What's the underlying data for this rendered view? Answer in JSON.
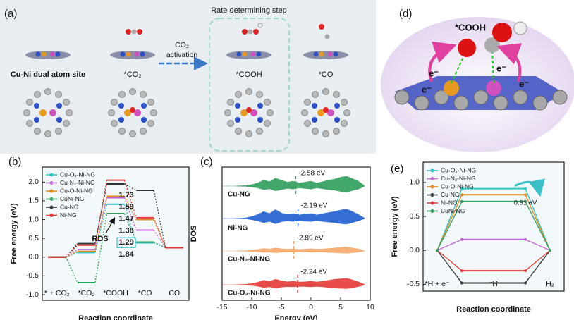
{
  "panel_a": {
    "label": "(a)",
    "rds_title": "Rate determining step",
    "states": [
      "Cu-Ni dual atom site",
      "*CO₂",
      "*COOH",
      "*CO"
    ],
    "arrow_label": [
      "CO₂",
      "activation"
    ]
  },
  "panel_d": {
    "label": "(d)",
    "species": "*COOH",
    "electron": "e⁻"
  },
  "chart_data": [
    {
      "type": "step",
      "label": "(b)",
      "xlabel": "Reaction coordinate",
      "ylabel": "Free energy (eV)",
      "categories": [
        "* + CO₂",
        "*CO₂",
        "*COOH",
        "*CO",
        "CO"
      ],
      "ylim": [
        -1.15,
        2.4
      ],
      "yticks": [
        {
          "value": -1,
          "label": "-1.0"
        },
        -0.5,
        {
          "value": 0,
          "label": "0.0"
        },
        0.5,
        {
          "value": 1,
          "label": "1.0"
        },
        1.5,
        {
          "value": 2,
          "label": "2.0"
        }
      ],
      "connector": "dashed",
      "series": [
        {
          "name": "Cu-O₂-Ni-NG",
          "color": "#2ec4c4",
          "values": [
            0,
            0.12,
            1.41,
            0.38,
            0.25
          ]
        },
        {
          "name": "Cu-N₂-Ni-NG",
          "color": "#c266d6",
          "values": [
            0,
            0.2,
            1.58,
            0.72,
            0.25
          ]
        },
        {
          "name": "Cu-O-Ni-NG",
          "color": "#e08a1e",
          "values": [
            0,
            0.15,
            1.62,
            1.0,
            0.25
          ]
        },
        {
          "name": "CuNi-NG",
          "color": "#2e9e5b",
          "values": [
            0,
            -0.68,
            1.16,
            0.4,
            0.25
          ]
        },
        {
          "name": "Cu-NG",
          "color": "#333333",
          "values": [
            0,
            0.36,
            1.95,
            1.78,
            0.25
          ]
        },
        {
          "name": "Ni-NG",
          "color": "#e53935",
          "values": [
            0,
            0.32,
            2.05,
            1.05,
            0.25
          ]
        }
      ],
      "rds_label": "RDS",
      "barriers": [
        {
          "value": 1.73,
          "color": "#e53935"
        },
        {
          "value": 1.59,
          "color": "#111111"
        },
        {
          "value": 1.47,
          "color": "#e08a1e"
        },
        {
          "value": 1.38,
          "color": "#c266d6"
        },
        {
          "value": 1.29,
          "color": "#2ec4c4",
          "boxed": true
        },
        {
          "value": 1.84,
          "color": "#2e9e5b"
        }
      ]
    },
    {
      "type": "dos",
      "label": "(c)",
      "xlabel": "Energy (eV)",
      "ylabel": "DOS",
      "xlim": [
        -15,
        10
      ],
      "xticks": [
        -15,
        -10,
        -5,
        0,
        5,
        10
      ],
      "x": [
        -15,
        -14,
        -13,
        -12,
        -11,
        -10,
        -9,
        -8,
        -7,
        -6,
        -5,
        -4,
        -3,
        -2,
        -1,
        0,
        1,
        2,
        3,
        4,
        5,
        6,
        7,
        8,
        9
      ],
      "series": [
        {
          "name": "Cu-NG",
          "color": "#2e9e5b",
          "center": -2.58,
          "center_label": "-2.58 eV",
          "values": [
            0,
            0,
            0,
            0.02,
            0.05,
            0.15,
            0.3,
            0.6,
            0.45,
            0.8,
            0.6,
            0.4,
            0.5,
            0.3,
            0.4,
            0.5,
            0.3,
            0.45,
            0.6,
            0.7,
            0.9,
            1.0,
            0.75,
            0.5,
            0.05
          ]
        },
        {
          "name": "Ni-NG",
          "color": "#1f5fd1",
          "center": -2.19,
          "center_label": "-2.19 eV",
          "values": [
            0,
            0,
            0,
            0.02,
            0.06,
            0.2,
            0.4,
            0.7,
            0.5,
            0.9,
            0.55,
            0.4,
            0.5,
            0.35,
            0.45,
            0.5,
            0.35,
            0.5,
            0.6,
            0.7,
            0.85,
            0.95,
            0.7,
            0.4,
            0.05
          ]
        },
        {
          "name": "Cu-N₂-Ni-NG",
          "color": "#f5a86a",
          "center": -2.89,
          "center_label": "-2.89 eV",
          "values": [
            0,
            0,
            0,
            0.01,
            0.03,
            0.08,
            0.15,
            0.25,
            0.2,
            0.3,
            0.22,
            0.18,
            0.2,
            0.15,
            0.18,
            0.22,
            0.18,
            0.2,
            0.25,
            0.3,
            0.35,
            0.4,
            0.3,
            0.2,
            0.03
          ]
        },
        {
          "name": "Cu-O₂-Ni-NG",
          "color": "#e53935",
          "center": -2.24,
          "center_label": "-2.24 eV",
          "values": [
            0,
            0,
            0,
            0.02,
            0.05,
            0.12,
            0.25,
            0.45,
            0.35,
            0.55,
            0.4,
            0.3,
            0.35,
            0.28,
            0.3,
            0.35,
            0.28,
            0.35,
            0.45,
            0.55,
            0.6,
            0.65,
            0.5,
            0.3,
            0.04
          ]
        }
      ]
    },
    {
      "type": "step",
      "label": "(e)",
      "xlabel": "Reaction coordinate",
      "ylabel": "Free energy (eV)",
      "categories": [
        "*H + e⁻",
        "*H",
        "H₂"
      ],
      "ylim": [
        -0.6,
        1.3
      ],
      "yticks": [
        -0.5,
        {
          "value": 0,
          "label": "0.0"
        },
        0.5,
        {
          "value": 1,
          "label": "1.0"
        }
      ],
      "connector": "solid",
      "markers": true,
      "series": [
        {
          "name": "Cu-O₂-Ni-NG",
          "color": "#2ec4c4",
          "values": [
            0,
            0.91,
            0
          ]
        },
        {
          "name": "Cu-N₂-Ni-NG",
          "color": "#c266d6",
          "values": [
            0,
            0.16,
            0
          ]
        },
        {
          "name": "Cu-O-Ni-NG",
          "color": "#e08a1e",
          "values": [
            0,
            0.82,
            0
          ]
        },
        {
          "name": "Cu-NG",
          "color": "#333333",
          "values": [
            0,
            -0.48,
            0
          ]
        },
        {
          "name": "Ni-NG",
          "color": "#e53935",
          "values": [
            0,
            -0.3,
            0
          ]
        },
        {
          "name": "CuNi-NG",
          "color": "#2e9e5b",
          "values": [
            0,
            0.72,
            0
          ]
        }
      ],
      "annotation": {
        "value": 0.91,
        "label": "0.91 eV"
      }
    }
  ]
}
